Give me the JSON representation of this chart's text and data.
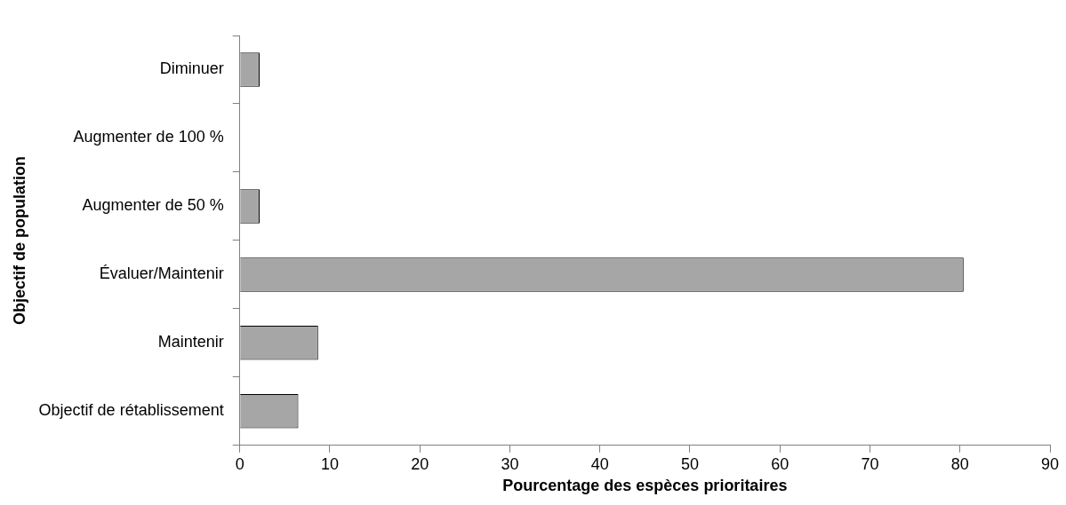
{
  "chart_data": {
    "type": "bar",
    "orientation": "horizontal",
    "xlabel": "Pourcentage des espèces prioritaires",
    "ylabel": "Objectif de population",
    "categories": [
      "Diminuer",
      "Augmenter de 100 %",
      "Augmenter de 50 %",
      "Évaluer/Maintenir",
      "Maintenir",
      "Objectif de rétablissement"
    ],
    "values": [
      2.2,
      0,
      2.2,
      80.4,
      8.7,
      6.5
    ],
    "color": "#a6a6a6",
    "xlim": [
      0,
      90
    ],
    "xticks": [
      0,
      10,
      20,
      30,
      40,
      50,
      60,
      70,
      80,
      90
    ],
    "grid": false,
    "legend": false
  }
}
